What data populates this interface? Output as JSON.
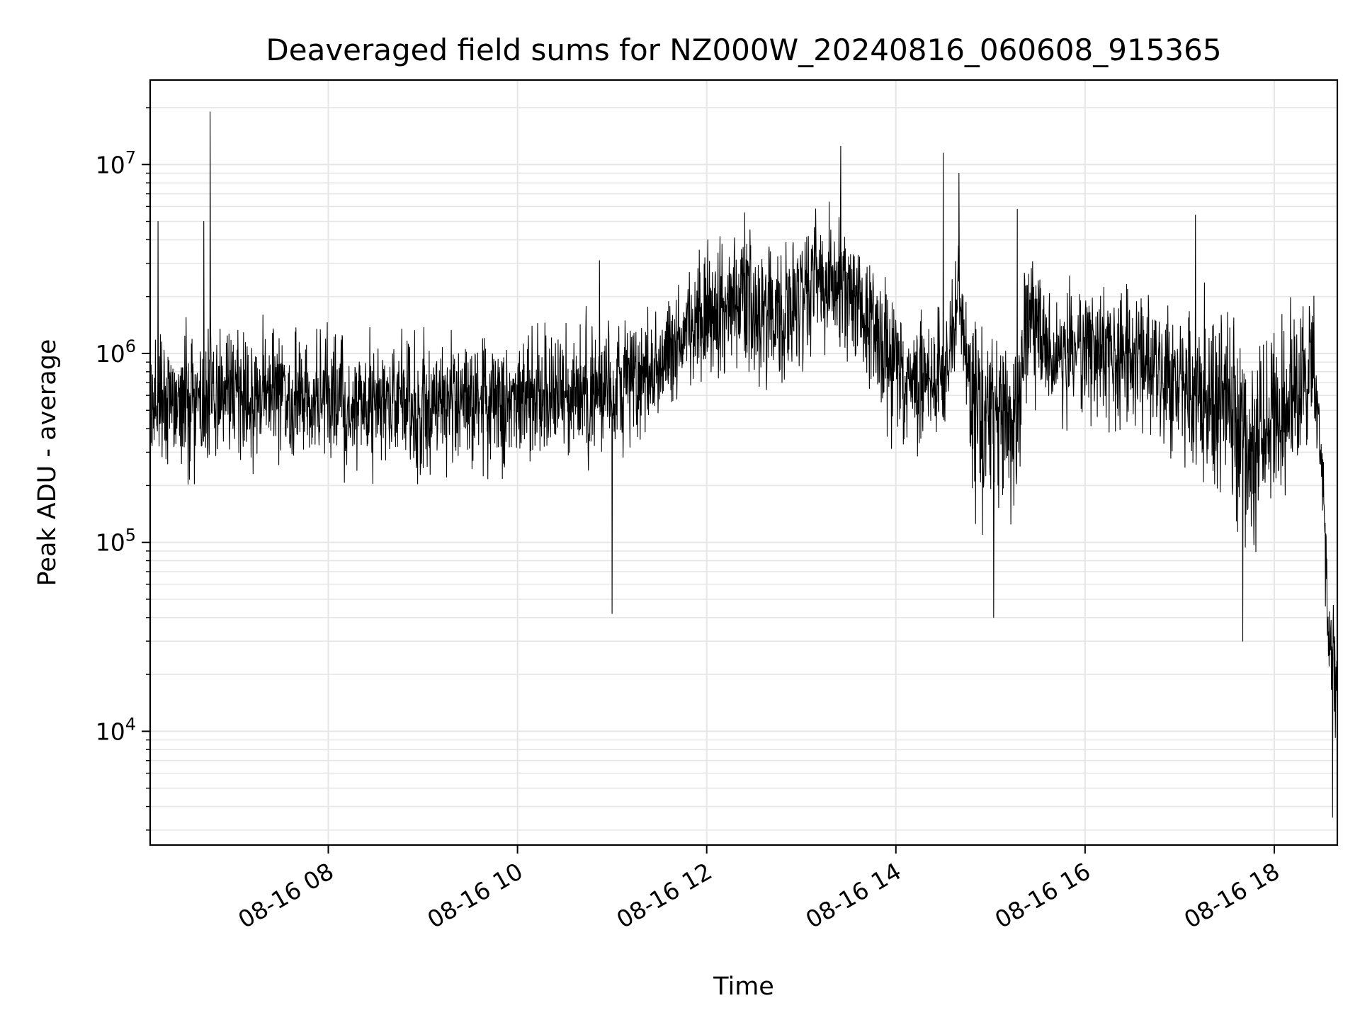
{
  "chart_data": {
    "type": "line",
    "title": "Deaveraged field sums for NZ000W_20240816_060608_915365",
    "xlabel": "Time",
    "ylabel": "Peak ADU - average",
    "yscale": "log",
    "xlim": [
      "2024-08-16 06:07",
      "2024-08-16 18:40"
    ],
    "ylim": [
      2500,
      28000000
    ],
    "grid": true,
    "line_color": "#000000",
    "grid_color": "#e6e6e6",
    "x_ticks": [
      {
        "value": "2024-08-16 08:00",
        "label": "08-16 08"
      },
      {
        "value": "2024-08-16 10:00",
        "label": "08-16 10"
      },
      {
        "value": "2024-08-16 12:00",
        "label": "08-16 12"
      },
      {
        "value": "2024-08-16 14:00",
        "label": "08-16 14"
      },
      {
        "value": "2024-08-16 16:00",
        "label": "08-16 16"
      },
      {
        "value": "2024-08-16 18:00",
        "label": "08-16 18"
      }
    ],
    "y_ticks": [
      {
        "value": 10000,
        "base": "10",
        "exp": "4"
      },
      {
        "value": 100000,
        "base": "10",
        "exp": "5"
      },
      {
        "value": 1000000,
        "base": "10",
        "exp": "6"
      },
      {
        "value": 10000000,
        "base": "10",
        "exp": "7"
      }
    ],
    "series": [
      {
        "x": [
          "2024-08-16 06:07",
          "2024-08-16 06:30",
          "2024-08-16 07:00",
          "2024-08-16 07:30",
          "2024-08-16 08:00",
          "2024-08-16 08:30",
          "2024-08-16 09:00",
          "2024-08-16 09:30",
          "2024-08-16 10:00",
          "2024-08-16 10:30",
          "2024-08-16 11:00",
          "2024-08-16 11:30",
          "2024-08-16 11:50",
          "2024-08-16 12:15",
          "2024-08-16 12:45",
          "2024-08-16 13:10",
          "2024-08-16 13:30",
          "2024-08-16 13:50",
          "2024-08-16 14:10",
          "2024-08-16 14:30",
          "2024-08-16 14:40",
          "2024-08-16 14:50",
          "2024-08-16 15:15",
          "2024-08-16 15:25",
          "2024-08-16 15:45",
          "2024-08-16 16:15",
          "2024-08-16 16:45",
          "2024-08-16 17:15",
          "2024-08-16 17:45",
          "2024-08-16 18:15",
          "2024-08-16 18:25",
          "2024-08-16 18:30",
          "2024-08-16 18:35",
          "2024-08-16 18:40"
        ],
        "y": [
          600000,
          550000,
          620000,
          580000,
          550000,
          540000,
          530000,
          560000,
          580000,
          620000,
          680000,
          800000,
          1400000,
          1900000,
          1600000,
          2600000,
          2200000,
          1200000,
          700000,
          720000,
          2200000,
          500000,
          420000,
          1500000,
          1000000,
          1000000,
          900000,
          600000,
          350000,
          600000,
          900000,
          250000,
          30000,
          20000
        ],
        "spread_decades": [
          0.45,
          0.5,
          0.45,
          0.45,
          0.45,
          0.45,
          0.45,
          0.45,
          0.45,
          0.45,
          0.45,
          0.35,
          0.45,
          0.5,
          0.5,
          0.45,
          0.45,
          0.5,
          0.45,
          0.45,
          0.35,
          0.65,
          0.65,
          0.5,
          0.45,
          0.45,
          0.5,
          0.6,
          0.7,
          0.6,
          0.4,
          0.3,
          0.4,
          0.4
        ]
      }
    ],
    "spikes": [
      {
        "x": "2024-08-16 06:45",
        "y": 19000000
      },
      {
        "x": "2024-08-16 06:41",
        "y": 5000000
      },
      {
        "x": "2024-08-16 06:12",
        "y": 5000000
      },
      {
        "x": "2024-08-16 11:00",
        "y": 42000
      },
      {
        "x": "2024-08-16 10:52",
        "y": 3100000
      },
      {
        "x": "2024-08-16 13:25",
        "y": 12500000
      },
      {
        "x": "2024-08-16 14:30",
        "y": 11500000
      },
      {
        "x": "2024-08-16 14:40",
        "y": 9000000
      },
      {
        "x": "2024-08-16 15:02",
        "y": 40000
      },
      {
        "x": "2024-08-16 15:17",
        "y": 5800000
      },
      {
        "x": "2024-08-16 17:10",
        "y": 5400000
      },
      {
        "x": "2024-08-16 17:40",
        "y": 30000
      },
      {
        "x": "2024-08-16 18:37",
        "y": 3500
      }
    ]
  }
}
